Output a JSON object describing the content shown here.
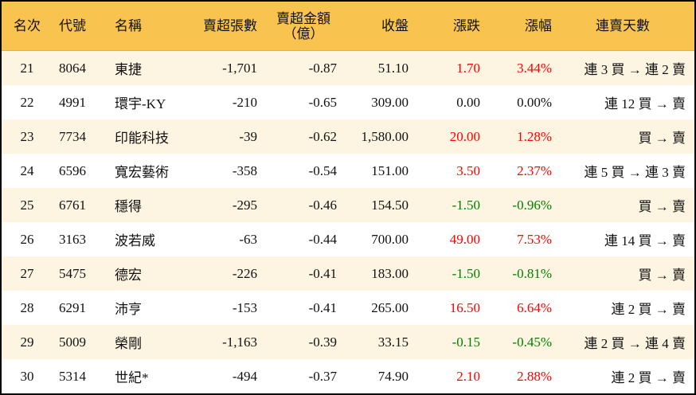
{
  "headers": [
    "名次",
    "代號",
    "名稱",
    "賣超張數",
    "賣超金額",
    "（億）",
    "收盤",
    "漲跌",
    "漲幅",
    "連賣天數"
  ],
  "colors": {
    "header_bg": "#F8C34F",
    "row_alt_bg": "#FDF5E1",
    "up": "#ff0000",
    "down": "#008000"
  },
  "rows": [
    {
      "rank": "21",
      "code": "8064",
      "name": "東捷",
      "shares": "-1,701",
      "amount": "-0.87",
      "close": "51.10",
      "change": "1.70",
      "pct": "3.44%",
      "streak": "連 3 買 → 連 2 賣",
      "dir": "up"
    },
    {
      "rank": "22",
      "code": "4991",
      "name": "環宇-KY",
      "shares": "-210",
      "amount": "-0.65",
      "close": "309.00",
      "change": "0.00",
      "pct": "0.00%",
      "streak": "連 12 買 → 賣",
      "dir": "flat"
    },
    {
      "rank": "23",
      "code": "7734",
      "name": "印能科技",
      "shares": "-39",
      "amount": "-0.62",
      "close": "1,580.00",
      "change": "20.00",
      "pct": "1.28%",
      "streak": "買 → 賣",
      "dir": "up"
    },
    {
      "rank": "24",
      "code": "6596",
      "name": "寬宏藝術",
      "shares": "-358",
      "amount": "-0.54",
      "close": "151.00",
      "change": "3.50",
      "pct": "2.37%",
      "streak": "連 5 買 → 連 3 賣",
      "dir": "up"
    },
    {
      "rank": "25",
      "code": "6761",
      "name": "穩得",
      "shares": "-295",
      "amount": "-0.46",
      "close": "154.50",
      "change": "-1.50",
      "pct": "-0.96%",
      "streak": "買 → 賣",
      "dir": "down"
    },
    {
      "rank": "26",
      "code": "3163",
      "name": "波若威",
      "shares": "-63",
      "amount": "-0.44",
      "close": "700.00",
      "change": "49.00",
      "pct": "7.53%",
      "streak": "連 14 買 → 賣",
      "dir": "up"
    },
    {
      "rank": "27",
      "code": "5475",
      "name": "德宏",
      "shares": "-226",
      "amount": "-0.41",
      "close": "183.00",
      "change": "-1.50",
      "pct": "-0.81%",
      "streak": "買 → 賣",
      "dir": "down"
    },
    {
      "rank": "28",
      "code": "6291",
      "name": "沛亨",
      "shares": "-153",
      "amount": "-0.41",
      "close": "265.00",
      "change": "16.50",
      "pct": "6.64%",
      "streak": "連 2 買 → 賣",
      "dir": "up"
    },
    {
      "rank": "29",
      "code": "5009",
      "name": "榮剛",
      "shares": "-1,163",
      "amount": "-0.39",
      "close": "33.15",
      "change": "-0.15",
      "pct": "-0.45%",
      "streak": "連 2 買 → 連 4 賣",
      "dir": "down"
    },
    {
      "rank": "30",
      "code": "5314",
      "name": "世紀*",
      "shares": "-494",
      "amount": "-0.37",
      "close": "74.90",
      "change": "2.10",
      "pct": "2.88%",
      "streak": "連 2 買 → 賣",
      "dir": "up"
    }
  ]
}
